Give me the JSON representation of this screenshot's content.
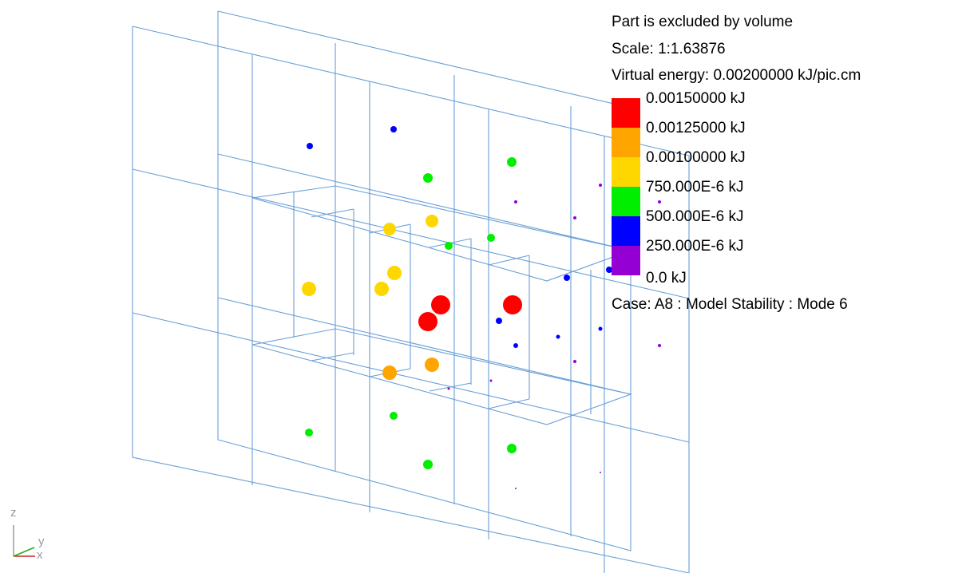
{
  "header": {
    "line1": "Part is excluded by volume",
    "line2": "Scale: 1:1.63876",
    "line3": "Virtual energy: 0.00200000 kJ/pic.cm"
  },
  "legend": {
    "items": [
      {
        "color": "#ff0000",
        "label": "0.00150000 kJ"
      },
      {
        "color": "#ffa500",
        "label": "0.00125000 kJ"
      },
      {
        "color": "#ffd700",
        "label": "0.00100000 kJ"
      },
      {
        "color": "#00ee00",
        "label": "750.000E-6 kJ"
      },
      {
        "color": "#0000ff",
        "label": "500.000E-6 kJ"
      },
      {
        "color": "#9400d3",
        "label": "250.000E-6 kJ"
      },
      {
        "color": "",
        "label": "0.0 kJ"
      }
    ]
  },
  "case_text": "Case: A8 : Model Stability : Mode 6",
  "axes": {
    "z": "z",
    "y": "y",
    "x": "x"
  },
  "colors": {
    "mesh": "#6a9fd6",
    "red": "#ff0000",
    "orange": "#ffa500",
    "yellow": "#ffd700",
    "green": "#00ee00",
    "blue": "#0000ff",
    "purple": "#9400d3"
  }
}
